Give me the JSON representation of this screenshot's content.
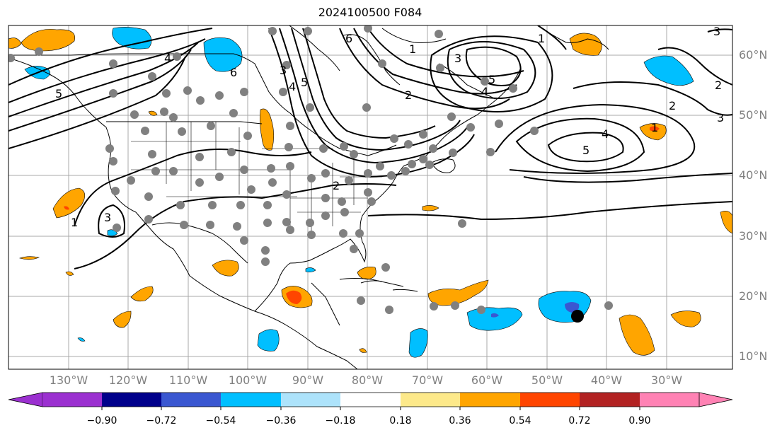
{
  "title": "2024100500 F084",
  "lat_labels": [
    "60°N",
    "50°N",
    "40°N",
    "30°N",
    "20°N",
    "10°N"
  ],
  "lon_labels": [
    "130°W",
    "120°W",
    "110°W",
    "100°W",
    "90°W",
    "80°W",
    "70°W",
    "60°W",
    "50°W",
    "40°W",
    "30°W"
  ],
  "colorbar": {
    "ticks": [
      "−0.90",
      "−0.72",
      "−0.54",
      "−0.36",
      "−0.18",
      "0.18",
      "0.36",
      "0.54",
      "0.72",
      "0.90"
    ],
    "colors": [
      "#9b30d0",
      "#00008b",
      "#3a57d1",
      "#00bfff",
      "#ade3fb",
      "#ffffff",
      "#fde98a",
      "#ffa500",
      "#ff4500",
      "#b22222",
      "#ff82b4"
    ]
  },
  "contour_labels": [
    "1",
    "2",
    "3",
    "4",
    "5",
    "6",
    "3",
    "4",
    "5",
    "6",
    "1",
    "2",
    "3",
    "4",
    "5",
    "1",
    "2",
    "3",
    "4",
    "5",
    "1",
    "2",
    "3"
  ]
}
